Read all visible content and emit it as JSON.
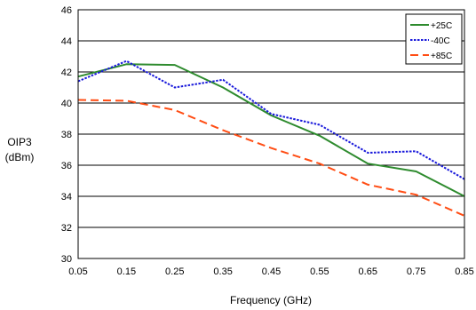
{
  "chart_data": {
    "type": "line",
    "xlabel": "Frequency (GHz)",
    "ylabel": [
      "OIP3",
      "(dBm)"
    ],
    "xlim": [
      0.05,
      0.85
    ],
    "ylim": [
      30,
      46
    ],
    "x_ticks": [
      "0.05",
      "0.15",
      "0.25",
      "0.35",
      "0.45",
      "0.55",
      "0.65",
      "0.75",
      "0.85"
    ],
    "y_ticks": [
      "30",
      "32",
      "34",
      "36",
      "38",
      "40",
      "42",
      "44",
      "46"
    ],
    "grid": "horizontal",
    "legend_position": "top-right",
    "x": [
      0.05,
      0.15,
      0.25,
      0.35,
      0.45,
      0.55,
      0.65,
      0.75,
      0.85
    ],
    "series": [
      {
        "name": "+25C",
        "color": "#2e8b2e",
        "style": "solid",
        "values": [
          41.7,
          42.5,
          42.45,
          41.0,
          39.2,
          37.9,
          36.1,
          35.6,
          34.0
        ]
      },
      {
        "name": "-40C",
        "color": "#1a1adb",
        "style": "dotted",
        "values": [
          41.4,
          42.7,
          41.0,
          41.5,
          39.3,
          38.6,
          36.8,
          36.9,
          35.1
        ]
      },
      {
        "name": "+85C",
        "color": "#ff4d14",
        "style": "dashed",
        "values": [
          40.2,
          40.15,
          39.55,
          38.25,
          37.1,
          36.1,
          34.75,
          34.1,
          32.75
        ]
      }
    ]
  }
}
